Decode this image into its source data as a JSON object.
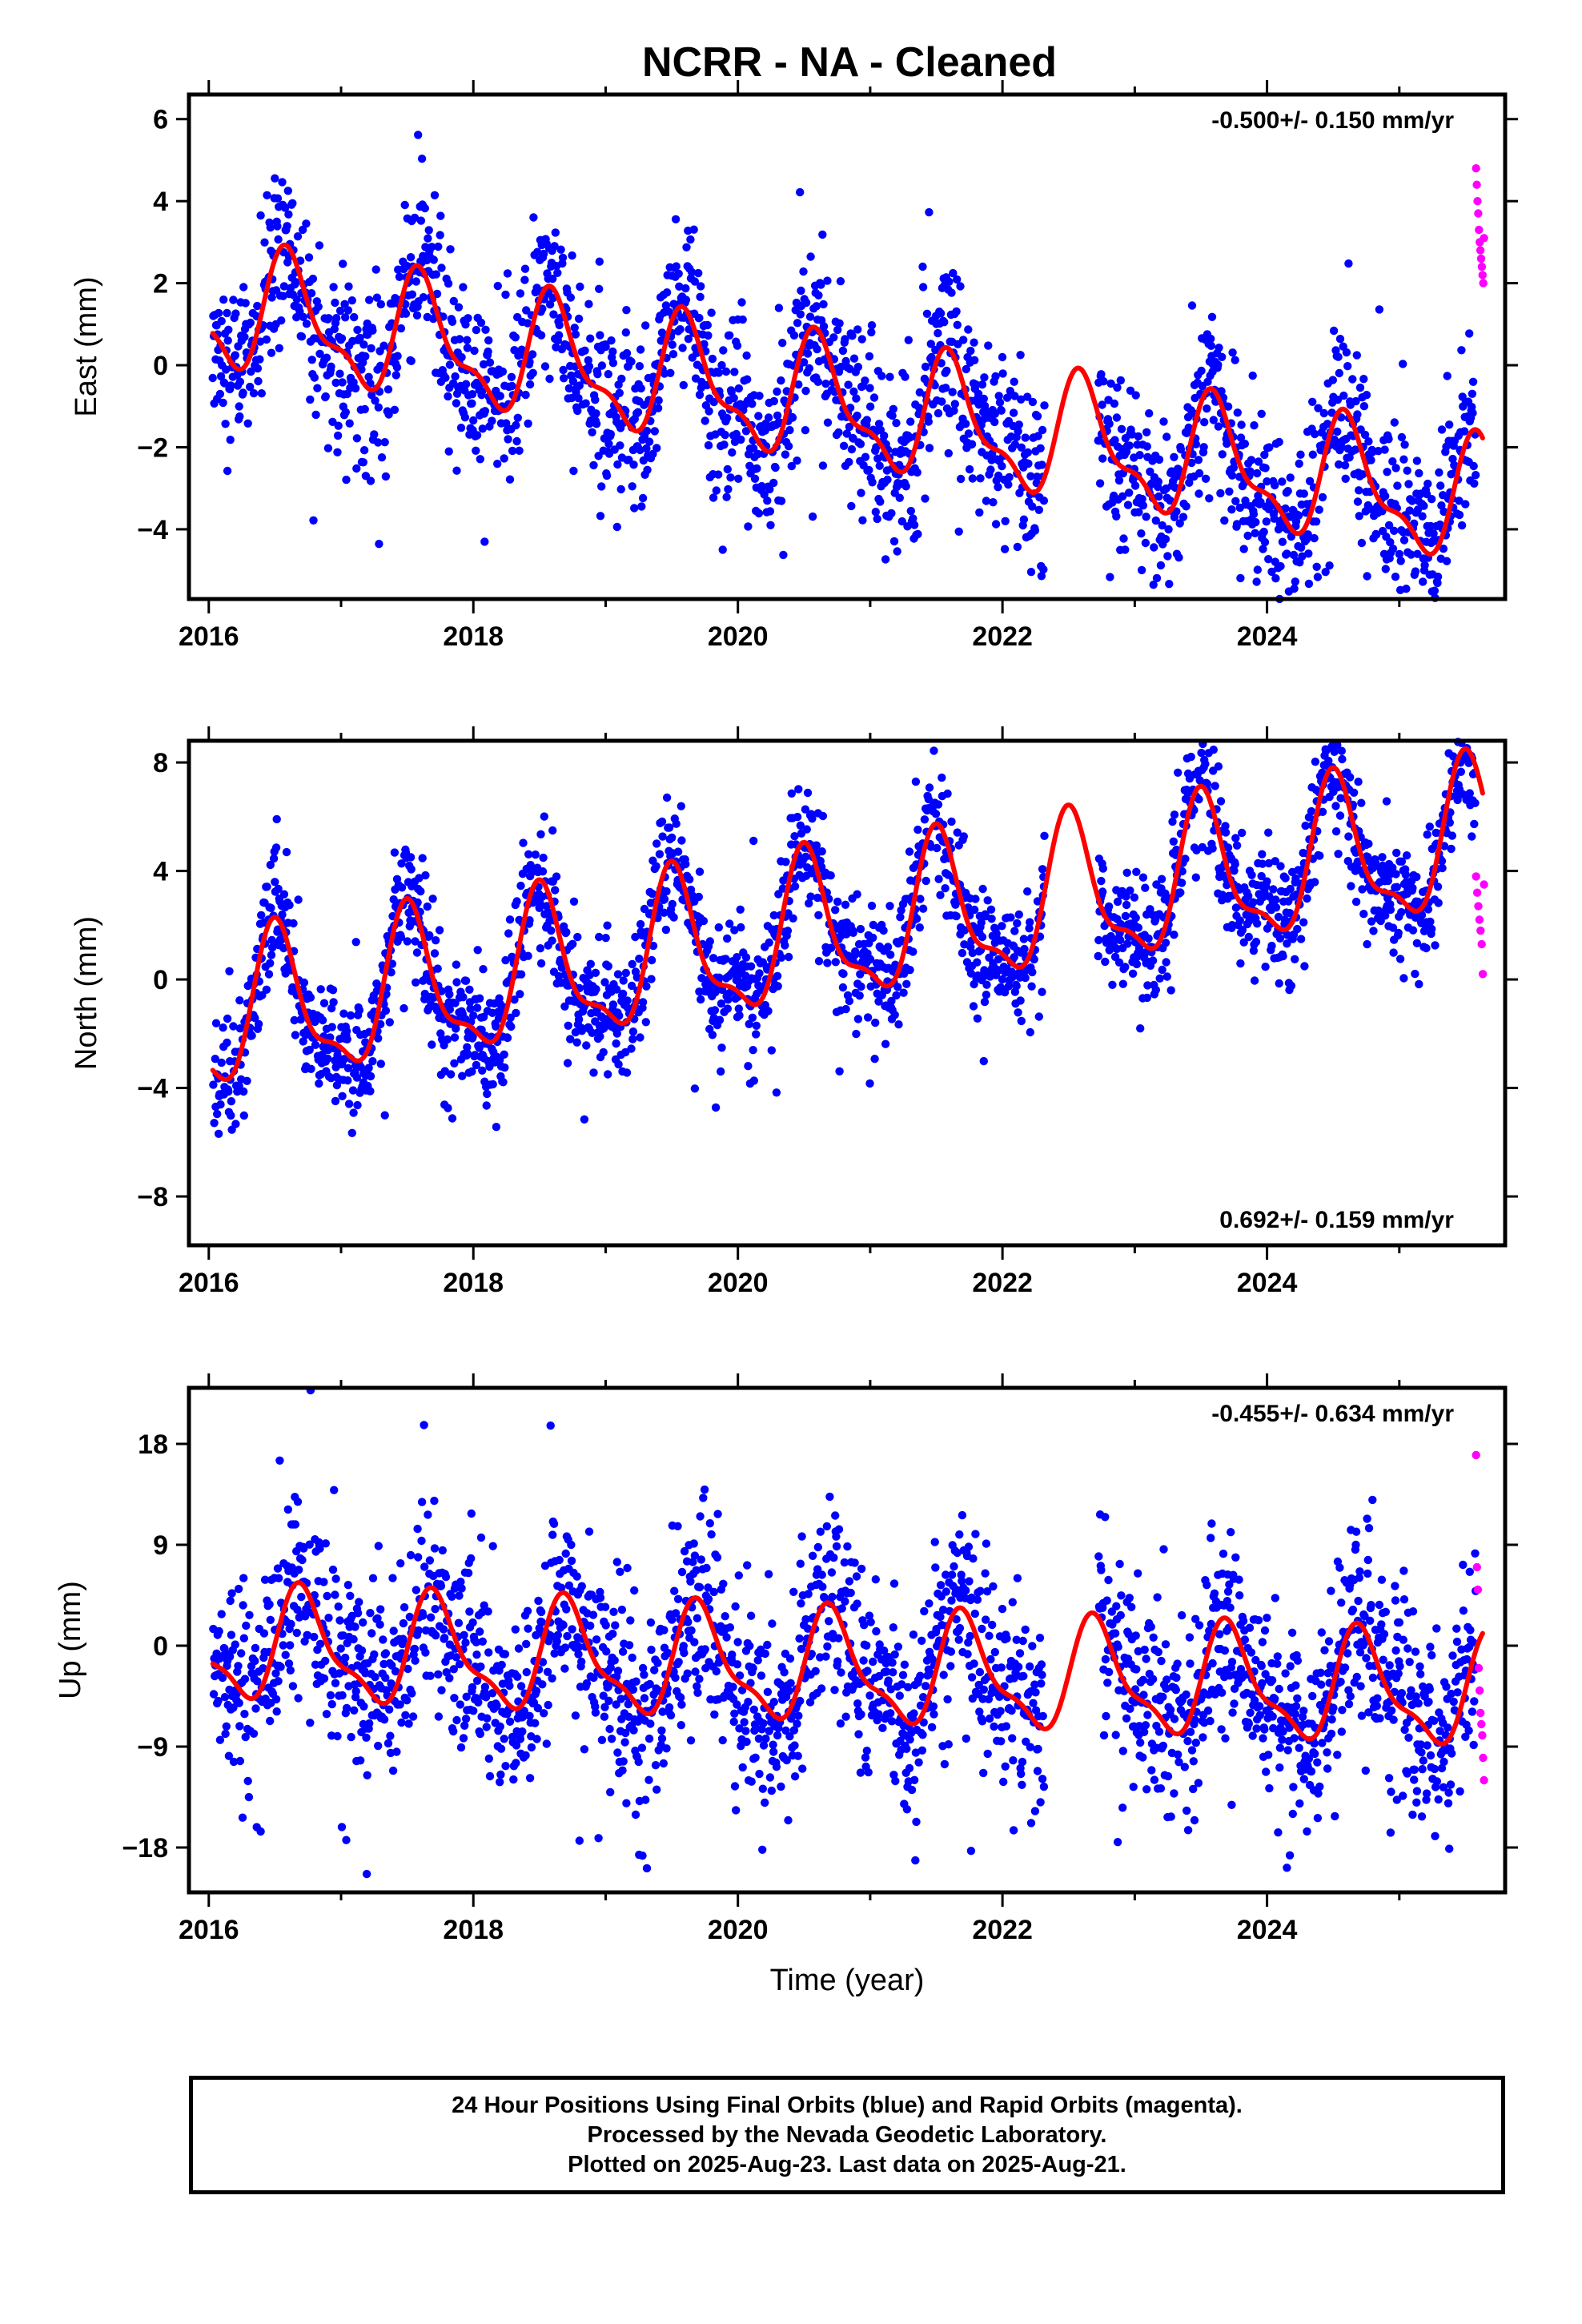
{
  "title": "NCRR  - NA - Cleaned",
  "colors": {
    "final": "#0000ff",
    "rapid": "#ff00ff",
    "model": "#ff0000",
    "axis": "#000000"
  },
  "footer": {
    "line1": "24 Hour Positions Using Final Orbits (blue) and Rapid Orbits (magenta).",
    "line2": "Processed by the Nevada Geodetic Laboratory.",
    "line3": "Plotted on 2025-Aug-23. Last data on 2025-Aug-21."
  },
  "chart_data": [
    {
      "type": "scatter",
      "component": "east",
      "ylabel": "East (mm)",
      "xlabel": "",
      "xlim": [
        2015.85,
        2025.8
      ],
      "ylim": [
        -5.7,
        6.6
      ],
      "xticks": [
        2016,
        2018,
        2020,
        2022,
        2024
      ],
      "yticks": [
        -4,
        -2,
        0,
        2,
        4,
        6
      ],
      "rate_text": "-0.500+/- 0.150 mm/yr",
      "rate_position": "top-right",
      "model": {
        "offset": 1.4,
        "ref_year": 2016.0,
        "rate": -0.5,
        "amp1": 1.35,
        "peak1": 2016.62,
        "amp2": 0.55,
        "peak2": 2016.55,
        "start": 2016.03,
        "end": 2025.63
      },
      "scatter": 1.05,
      "gap": [
        2022.32,
        2022.72
      ],
      "series": [
        {
          "name": "Final Orbits (blue)",
          "x_range": [
            2016.03,
            2025.58
          ]
        },
        {
          "name": "Rapid Orbits (magenta)",
          "x_range": [
            2025.58,
            2025.64
          ],
          "values": [
            4.8,
            4.4,
            4.0,
            3.7,
            3.3,
            3.0,
            2.8,
            2.6,
            2.4,
            2.2,
            2.0,
            3.1
          ]
        }
      ]
    },
    {
      "type": "scatter",
      "component": "north",
      "ylabel": "North (mm)",
      "xlabel": "",
      "xlim": [
        2015.85,
        2025.8
      ],
      "ylim": [
        -9.8,
        8.8
      ],
      "xticks": [
        2016,
        2018,
        2020,
        2022,
        2024
      ],
      "yticks": [
        -8,
        -4,
        0,
        4,
        8
      ],
      "rate_text": "0.692+/- 0.159 mm/yr",
      "rate_position": "bottom-right",
      "model": {
        "offset": -1.5,
        "ref_year": 2016.0,
        "rate": 0.69,
        "amp1": 2.6,
        "peak1": 2016.52,
        "amp2": 0.9,
        "peak2": 2016.48,
        "start": 2016.03,
        "end": 2025.63
      },
      "scatter": 1.1,
      "gap": [
        2022.32,
        2022.72
      ],
      "series": [
        {
          "name": "Final Orbits (blue)",
          "x_range": [
            2016.03,
            2025.58
          ]
        },
        {
          "name": "Rapid Orbits (magenta)",
          "x_range": [
            2025.58,
            2025.64
          ],
          "values": [
            3.8,
            3.2,
            2.7,
            2.2,
            1.8,
            1.3,
            0.2,
            3.5
          ]
        }
      ]
    },
    {
      "type": "scatter",
      "component": "up",
      "ylabel": "Up (mm)",
      "xlabel": "Time (year)",
      "xlim": [
        2015.85,
        2025.8
      ],
      "ylim": [
        -22,
        23
      ],
      "xticks": [
        2016,
        2018,
        2020,
        2022,
        2024
      ],
      "yticks": [
        -18,
        -9,
        0,
        9,
        18
      ],
      "rate_text": "-0.455+/- 0.634 mm/yr",
      "rate_position": "top-right",
      "model": {
        "offset": 0.0,
        "ref_year": 2016.0,
        "rate": -0.45,
        "amp1": 4.6,
        "peak1": 2016.72,
        "amp2": 1.6,
        "peak2": 2016.65,
        "start": 2016.03,
        "end": 2025.63
      },
      "scatter": 4.2,
      "gap": [
        2022.32,
        2022.72
      ],
      "series": [
        {
          "name": "Final Orbits (blue)",
          "x_range": [
            2016.03,
            2025.58
          ]
        },
        {
          "name": "Rapid Orbits (magenta)",
          "x_range": [
            2025.58,
            2025.64
          ],
          "values": [
            17.0,
            7.0,
            5.0,
            -2.0,
            -4.0,
            -6.0,
            -7.0,
            -8.0,
            -10.0,
            -12.0
          ]
        }
      ]
    }
  ]
}
